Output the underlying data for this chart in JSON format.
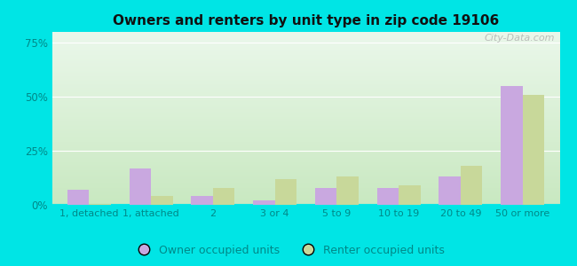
{
  "title": "Owners and renters by unit type in zip code 19106",
  "categories": [
    "1, detached",
    "1, attached",
    "2",
    "3 or 4",
    "5 to 9",
    "10 to 19",
    "20 to 49",
    "50 or more"
  ],
  "owner_values": [
    7,
    17,
    4,
    2,
    8,
    8,
    13,
    55
  ],
  "renter_values": [
    0.5,
    4,
    8,
    12,
    13,
    9,
    18,
    51
  ],
  "owner_color": "#c9a8e0",
  "renter_color": "#c8d89a",
  "background_color": "#00e5e5",
  "yticks": [
    0,
    25,
    50,
    75
  ],
  "ylim": [
    0,
    80
  ],
  "legend_owner": "Owner occupied units",
  "legend_renter": "Renter occupied units",
  "watermark": "City-Data.com",
  "bar_width": 0.35,
  "grad_top_color": "#eaf7ea",
  "grad_bottom_color": "#c8e8c0",
  "tick_color": "#00cccc",
  "tick_label_color": "#008888"
}
